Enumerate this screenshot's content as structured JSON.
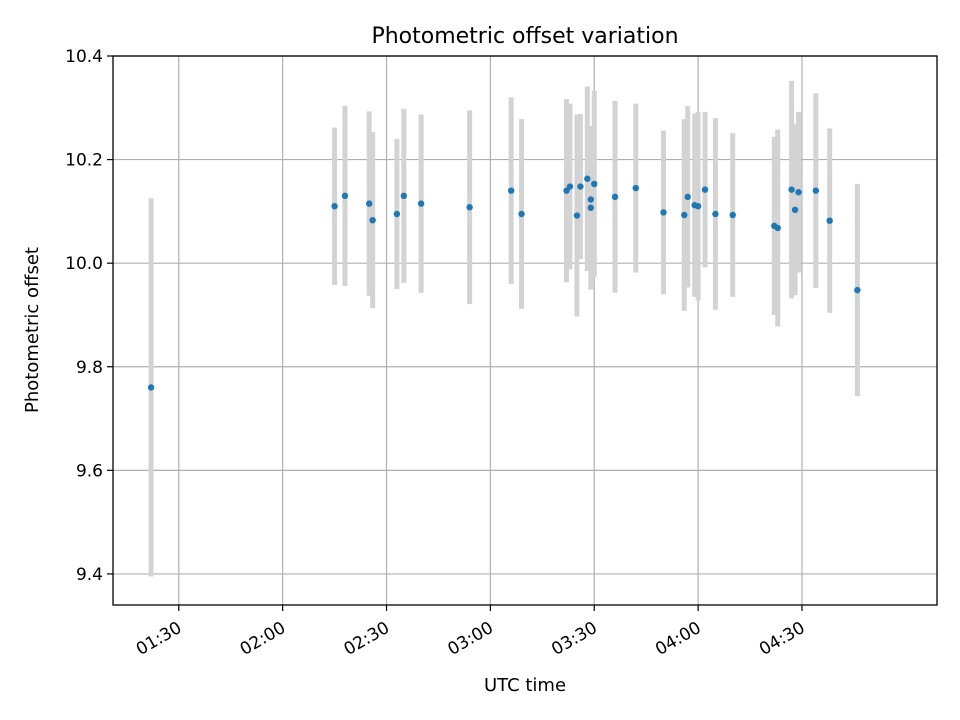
{
  "chart_data": {
    "type": "scatter",
    "title": "Photometric offset variation",
    "xlabel": "UTC time",
    "ylabel": "Photometric offset",
    "xlim": [
      "01:11",
      "05:09"
    ],
    "ylim": [
      9.34,
      10.4
    ],
    "grid": true,
    "x_ticks": [
      "01:30",
      "02:00",
      "02:30",
      "03:00",
      "03:30",
      "04:00",
      "04:30"
    ],
    "y_ticks": [
      "9.4",
      "9.6",
      "9.8",
      "10.0",
      "10.2",
      "10.4"
    ],
    "colors": {
      "point": "#1f77b4",
      "errorbar": "#d3d3d3",
      "grid": "#b0b0b0"
    },
    "points": [
      {
        "x": "01:22",
        "y": 9.76,
        "err": 0.365
      },
      {
        "x": "02:15",
        "y": 10.11,
        "err": 0.152
      },
      {
        "x": "02:18",
        "y": 10.13,
        "err": 0.174
      },
      {
        "x": "02:25",
        "y": 10.115,
        "err": 0.178
      },
      {
        "x": "02:26",
        "y": 10.083,
        "err": 0.17
      },
      {
        "x": "02:33",
        "y": 10.095,
        "err": 0.145
      },
      {
        "x": "02:35",
        "y": 10.13,
        "err": 0.168
      },
      {
        "x": "02:40",
        "y": 10.115,
        "err": 0.172
      },
      {
        "x": "02:54",
        "y": 10.108,
        "err": 0.187
      },
      {
        "x": "03:06",
        "y": 10.14,
        "err": 0.18
      },
      {
        "x": "03:09",
        "y": 10.095,
        "err": 0.183
      },
      {
        "x": "03:22",
        "y": 10.14,
        "err": 0.177
      },
      {
        "x": "03:23",
        "y": 10.148,
        "err": 0.16
      },
      {
        "x": "03:25",
        "y": 10.092,
        "err": 0.195
      },
      {
        "x": "03:26",
        "y": 10.148,
        "err": 0.14
      },
      {
        "x": "03:28",
        "y": 10.163,
        "err": 0.178
      },
      {
        "x": "03:29",
        "y": 10.107,
        "err": 0.158
      },
      {
        "x": "03:29",
        "y": 10.123,
        "err": 0.14
      },
      {
        "x": "03:30",
        "y": 10.153,
        "err": 0.18
      },
      {
        "x": "03:36",
        "y": 10.128,
        "err": 0.185
      },
      {
        "x": "03:42",
        "y": 10.145,
        "err": 0.163
      },
      {
        "x": "03:50",
        "y": 10.098,
        "err": 0.158
      },
      {
        "x": "03:56",
        "y": 10.093,
        "err": 0.185
      },
      {
        "x": "03:57",
        "y": 10.128,
        "err": 0.175
      },
      {
        "x": "03:59",
        "y": 10.112,
        "err": 0.177
      },
      {
        "x": "04:00",
        "y": 10.11,
        "err": 0.182
      },
      {
        "x": "04:02",
        "y": 10.142,
        "err": 0.15
      },
      {
        "x": "04:05",
        "y": 10.095,
        "err": 0.185
      },
      {
        "x": "04:10",
        "y": 10.093,
        "err": 0.158
      },
      {
        "x": "04:22",
        "y": 10.072,
        "err": 0.172
      },
      {
        "x": "04:23",
        "y": 10.068,
        "err": 0.19
      },
      {
        "x": "04:27",
        "y": 10.142,
        "err": 0.21
      },
      {
        "x": "04:28",
        "y": 10.103,
        "err": 0.165
      },
      {
        "x": "04:29",
        "y": 10.137,
        "err": 0.155
      },
      {
        "x": "04:34",
        "y": 10.14,
        "err": 0.188
      },
      {
        "x": "04:38",
        "y": 10.082,
        "err": 0.178
      },
      {
        "x": "04:46",
        "y": 9.948,
        "err": 0.205
      }
    ]
  }
}
